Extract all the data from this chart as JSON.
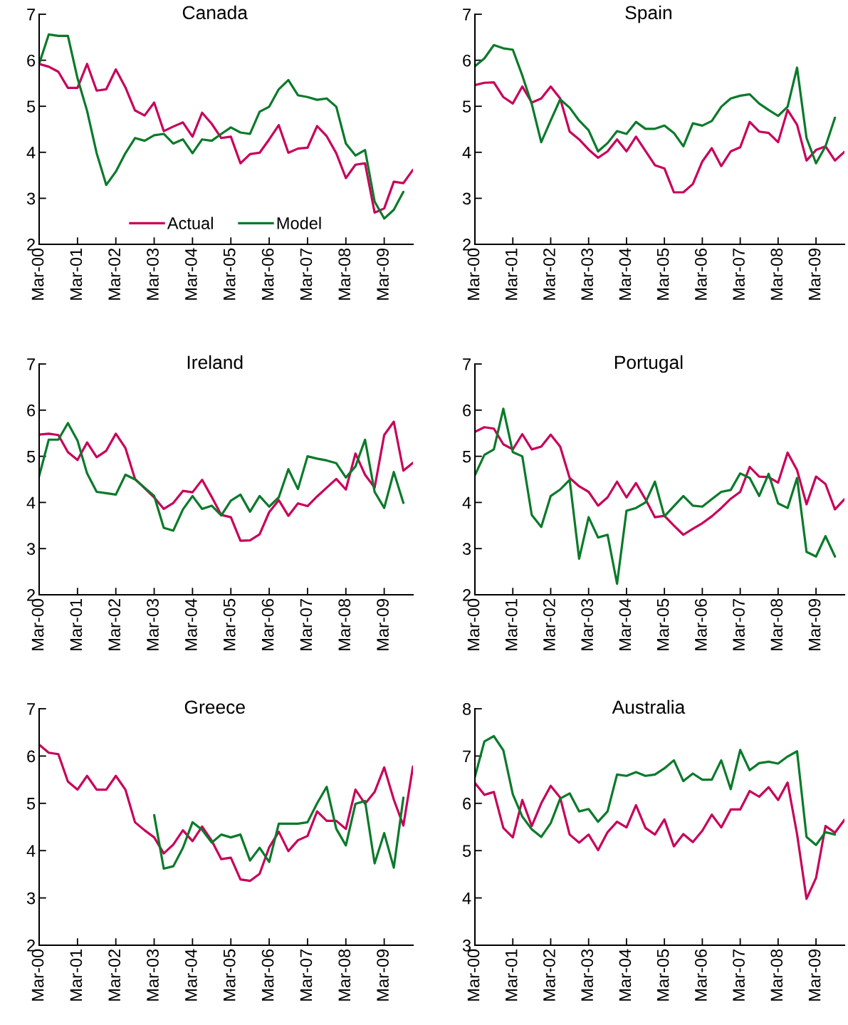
{
  "chart_data": [
    {
      "type": "line",
      "title": "Canada",
      "categories": [
        "Mar-00",
        null,
        null,
        null,
        "Mar-01",
        null,
        null,
        null,
        "Mar-02",
        null,
        null,
        null,
        "Mar-03",
        null,
        null,
        null,
        "Mar-04",
        null,
        null,
        null,
        "Mar-05",
        null,
        null,
        null,
        "Mar-06",
        null,
        null,
        null,
        "Mar-07",
        null,
        null,
        null,
        "Mar-08",
        null,
        null,
        null,
        "Mar-09",
        null,
        null,
        null
      ],
      "ylim": [
        2,
        7
      ],
      "yticks": [
        2,
        3,
        4,
        5,
        6,
        7
      ],
      "legend": "bottom",
      "series": [
        {
          "name": "Actual",
          "color": "#c8005a",
          "values": [
            5.92,
            5.86,
            5.75,
            5.4,
            5.4,
            5.92,
            5.34,
            5.37,
            5.8,
            5.41,
            4.91,
            4.8,
            5.08,
            4.46,
            4.56,
            4.65,
            4.34,
            4.86,
            4.62,
            4.31,
            4.34,
            3.76,
            3.96,
            3.99,
            4.28,
            4.59,
            3.99,
            4.08,
            4.1,
            4.57,
            4.35,
            3.98,
            3.44,
            3.73,
            3.76,
            2.69,
            2.78,
            3.36,
            3.33,
            3.62
          ]
        },
        {
          "name": "Model",
          "color": "#0a7a2a",
          "values": [
            5.92,
            6.56,
            6.53,
            6.53,
            5.61,
            4.9,
            3.98,
            3.29,
            3.58,
            3.98,
            4.31,
            4.25,
            4.37,
            4.4,
            4.19,
            4.28,
            3.98,
            4.28,
            4.25,
            4.4,
            4.54,
            4.43,
            4.4,
            4.88,
            4.99,
            5.37,
            5.57,
            5.24,
            5.2,
            5.14,
            5.17,
            4.99,
            4.19,
            3.93,
            4.05,
            2.93,
            2.56,
            2.75,
            3.14,
            null
          ]
        }
      ]
    },
    {
      "type": "line",
      "title": "Spain",
      "categories": [
        "Mar-00",
        null,
        null,
        null,
        "Mar-01",
        null,
        null,
        null,
        "Mar-02",
        null,
        null,
        null,
        "Mar-03",
        null,
        null,
        null,
        "Mar-04",
        null,
        null,
        null,
        "Mar-05",
        null,
        null,
        null,
        "Mar-06",
        null,
        null,
        null,
        "Mar-07",
        null,
        null,
        null,
        "Mar-08",
        null,
        null,
        null,
        "Mar-09",
        null,
        null,
        null
      ],
      "ylim": [
        2,
        7
      ],
      "yticks": [
        2,
        3,
        4,
        5,
        6,
        7
      ],
      "series": [
        {
          "color": "#c8005a",
          "values": [
            5.46,
            5.51,
            5.52,
            5.2,
            5.06,
            5.43,
            5.08,
            5.17,
            5.43,
            5.17,
            4.45,
            4.28,
            4.06,
            3.88,
            4.02,
            4.28,
            4.02,
            4.34,
            4.03,
            3.72,
            3.65,
            3.13,
            3.13,
            3.31,
            3.8,
            4.09,
            3.7,
            4.02,
            4.11,
            4.66,
            4.45,
            4.42,
            4.22,
            4.92,
            4.6,
            3.82,
            4.05,
            4.13,
            3.82,
            4.01
          ]
        },
        {
          "color": "#0a7a2a",
          "values": [
            5.87,
            6.04,
            6.33,
            6.26,
            6.23,
            5.67,
            5.05,
            4.22,
            4.69,
            5.15,
            4.97,
            4.69,
            4.48,
            4.02,
            4.2,
            4.46,
            4.4,
            4.66,
            4.51,
            4.51,
            4.58,
            4.42,
            4.13,
            4.63,
            4.58,
            4.68,
            4.99,
            5.17,
            5.23,
            5.26,
            5.06,
            4.92,
            4.79,
            4.99,
            5.84,
            4.31,
            3.76,
            4.13,
            4.75,
            null
          ]
        }
      ]
    },
    {
      "type": "line",
      "title": "Ireland",
      "categories": [
        "Mar-00",
        null,
        null,
        null,
        "Mar-01",
        null,
        null,
        null,
        "Mar-02",
        null,
        null,
        null,
        "Mar-03",
        null,
        null,
        null,
        "Mar-04",
        null,
        null,
        null,
        "Mar-05",
        null,
        null,
        null,
        "Mar-06",
        null,
        null,
        null,
        "Mar-07",
        null,
        null,
        null,
        "Mar-08",
        null,
        null,
        null,
        "Mar-09",
        null,
        null,
        null
      ],
      "ylim": [
        2,
        7
      ],
      "yticks": [
        2,
        3,
        4,
        5,
        6,
        7
      ],
      "series": [
        {
          "color": "#c8005a",
          "values": [
            5.47,
            5.49,
            5.46,
            5.09,
            4.92,
            5.3,
            4.98,
            5.12,
            5.49,
            5.18,
            4.51,
            4.31,
            4.11,
            3.86,
            3.99,
            4.25,
            4.22,
            4.49,
            4.12,
            3.73,
            3.68,
            3.17,
            3.18,
            3.31,
            3.79,
            4.05,
            3.71,
            3.98,
            3.92,
            4.13,
            4.32,
            4.51,
            4.28,
            5.06,
            4.6,
            4.32,
            5.46,
            5.75,
            4.69,
            4.86
          ]
        },
        {
          "color": "#0a7a2a",
          "values": [
            4.57,
            5.36,
            5.36,
            5.72,
            5.34,
            4.63,
            4.23,
            4.2,
            4.17,
            4.6,
            4.5,
            4.32,
            4.14,
            3.45,
            3.39,
            3.85,
            4.14,
            3.86,
            3.93,
            3.72,
            4.04,
            4.17,
            3.8,
            4.14,
            3.91,
            4.11,
            4.72,
            4.29,
            5.0,
            4.95,
            4.91,
            4.85,
            4.54,
            4.78,
            5.36,
            4.23,
            3.88,
            4.66,
            3.99,
            null
          ]
        }
      ]
    },
    {
      "type": "line",
      "title": "Portugal",
      "categories": [
        "Mar-00",
        null,
        null,
        null,
        "Mar-01",
        null,
        null,
        null,
        "Mar-02",
        null,
        null,
        null,
        "Mar-03",
        null,
        null,
        null,
        "Mar-04",
        null,
        null,
        null,
        "Mar-05",
        null,
        null,
        null,
        "Mar-06",
        null,
        null,
        null,
        "Mar-07",
        null,
        null,
        null,
        "Mar-08",
        null,
        null,
        null,
        "Mar-09",
        null,
        null,
        null
      ],
      "ylim": [
        2,
        7
      ],
      "yticks": [
        2,
        3,
        4,
        5,
        6,
        7
      ],
      "series": [
        {
          "color": "#c8005a",
          "values": [
            5.53,
            5.63,
            5.6,
            5.26,
            5.15,
            5.48,
            5.15,
            5.21,
            5.47,
            5.21,
            4.53,
            4.35,
            4.23,
            3.93,
            4.11,
            4.45,
            4.11,
            4.42,
            4.07,
            3.68,
            3.71,
            3.5,
            3.3,
            3.43,
            3.55,
            3.7,
            3.88,
            4.08,
            4.23,
            4.77,
            4.56,
            4.55,
            4.43,
            5.08,
            4.7,
            3.96,
            4.56,
            4.4,
            3.85,
            4.07
          ]
        },
        {
          "color": "#0a7a2a",
          "values": [
            4.59,
            5.03,
            5.15,
            6.03,
            5.09,
            5.0,
            3.73,
            3.47,
            4.14,
            4.28,
            4.49,
            2.78,
            3.68,
            3.24,
            3.3,
            2.24,
            3.82,
            3.88,
            4.0,
            4.45,
            3.7,
            3.92,
            4.14,
            3.93,
            3.91,
            4.07,
            4.23,
            4.27,
            4.63,
            4.53,
            4.14,
            4.62,
            3.98,
            3.88,
            4.53,
            2.93,
            2.83,
            3.27,
            2.83,
            null
          ]
        }
      ]
    },
    {
      "type": "line",
      "title": "Greece",
      "categories": [
        "Mar-00",
        null,
        null,
        null,
        "Mar-01",
        null,
        null,
        null,
        "Mar-02",
        null,
        null,
        null,
        "Mar-03",
        null,
        null,
        null,
        "Mar-04",
        null,
        null,
        null,
        "Mar-05",
        null,
        null,
        null,
        "Mar-06",
        null,
        null,
        null,
        "Mar-07",
        null,
        null,
        null,
        "Mar-08",
        null,
        null,
        null,
        "Mar-09",
        null,
        null,
        null
      ],
      "ylim": [
        2,
        7
      ],
      "yticks": [
        2,
        3,
        4,
        5,
        6,
        7
      ],
      "series": [
        {
          "color": "#c8005a",
          "values": [
            6.24,
            6.07,
            6.04,
            5.46,
            5.29,
            5.58,
            5.29,
            5.29,
            5.58,
            5.29,
            4.6,
            4.43,
            4.28,
            3.94,
            4.13,
            4.43,
            4.2,
            4.51,
            4.21,
            3.82,
            3.85,
            3.39,
            3.36,
            3.51,
            4.07,
            4.4,
            3.99,
            4.22,
            4.31,
            4.83,
            4.63,
            4.63,
            4.46,
            5.29,
            4.99,
            5.24,
            5.76,
            5.08,
            4.53,
            5.78
          ]
        },
        {
          "color": "#0a7a2a",
          "values": [
            null,
            null,
            null,
            null,
            null,
            null,
            null,
            null,
            null,
            null,
            null,
            null,
            4.75,
            3.62,
            3.67,
            4.06,
            4.6,
            4.44,
            4.17,
            4.34,
            4.28,
            4.34,
            3.79,
            4.06,
            3.76,
            4.57,
            4.57,
            4.57,
            4.6,
            5.0,
            5.35,
            4.46,
            4.11,
            4.99,
            5.05,
            3.73,
            4.37,
            3.64,
            5.12,
            null
          ]
        }
      ]
    },
    {
      "type": "line",
      "title": "Australia",
      "categories": [
        "Mar-00",
        null,
        null,
        null,
        "Mar-01",
        null,
        null,
        null,
        "Mar-02",
        null,
        null,
        null,
        "Mar-03",
        null,
        null,
        null,
        "Mar-04",
        null,
        null,
        null,
        "Mar-05",
        null,
        null,
        null,
        "Mar-06",
        null,
        null,
        null,
        "Mar-07",
        null,
        null,
        null,
        "Mar-08",
        null,
        null,
        null,
        "Mar-09",
        null,
        null,
        null
      ],
      "ylim": [
        3,
        8
      ],
      "yticks": [
        3,
        4,
        5,
        6,
        7,
        8
      ],
      "series": [
        {
          "color": "#c8005a",
          "values": [
            6.43,
            6.18,
            6.24,
            5.48,
            5.28,
            6.07,
            5.52,
            6.0,
            6.37,
            6.12,
            5.34,
            5.17,
            5.34,
            5.01,
            5.39,
            5.61,
            5.49,
            5.96,
            5.48,
            5.34,
            5.66,
            5.09,
            5.35,
            5.18,
            5.42,
            5.76,
            5.49,
            5.87,
            5.87,
            6.26,
            6.14,
            6.34,
            6.07,
            6.44,
            5.35,
            3.98,
            4.42,
            5.52,
            5.38,
            5.65
          ]
        },
        {
          "color": "#0a7a2a",
          "values": [
            6.56,
            7.31,
            7.42,
            7.12,
            6.19,
            5.72,
            5.45,
            5.29,
            5.58,
            6.1,
            6.21,
            5.83,
            5.88,
            5.61,
            5.83,
            6.61,
            6.58,
            6.66,
            6.58,
            6.61,
            6.74,
            6.91,
            6.47,
            6.63,
            6.5,
            6.5,
            6.91,
            6.3,
            7.13,
            6.7,
            6.85,
            6.88,
            6.84,
            6.99,
            7.1,
            5.29,
            5.12,
            5.39,
            5.34,
            null
          ]
        }
      ]
    }
  ]
}
